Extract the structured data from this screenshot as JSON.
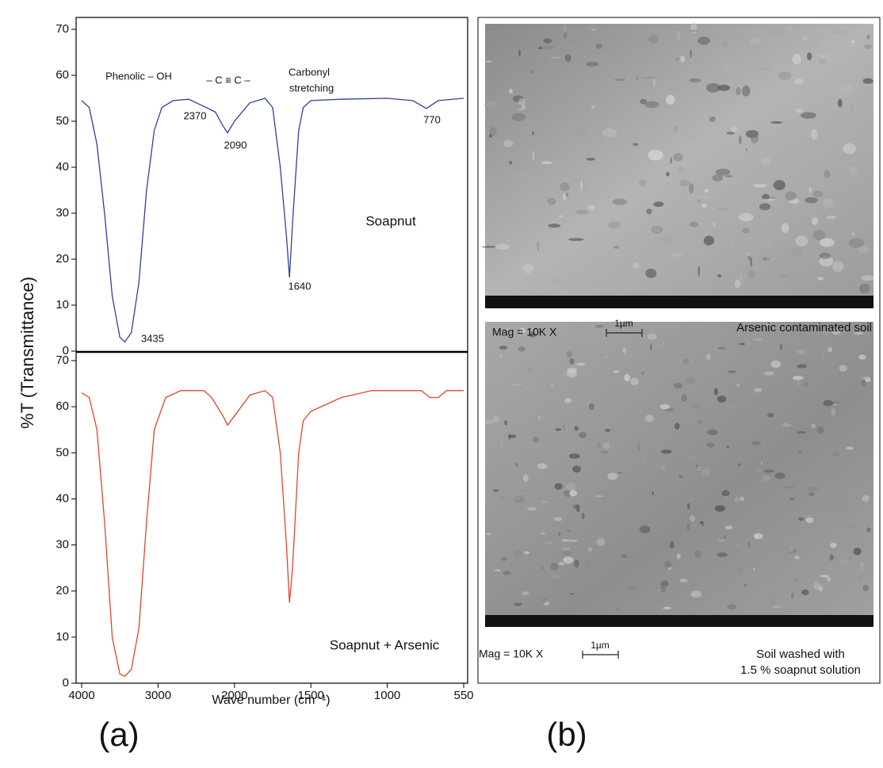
{
  "chart_data": [
    {
      "type": "line",
      "xlim": [
        4000,
        550
      ],
      "ylim": [
        0,
        70
      ],
      "yticks": [
        0,
        10,
        20,
        30,
        40,
        50,
        60,
        70
      ],
      "ylabel": "%T (Transmittance)",
      "x": [
        4000,
        3900,
        3800,
        3700,
        3600,
        3500,
        3435,
        3350,
        3250,
        3150,
        3050,
        2950,
        2800,
        2600,
        2370,
        2250,
        2150,
        2090,
        2000,
        1900,
        1800,
        1750,
        1700,
        1660,
        1640,
        1620,
        1580,
        1550,
        1500,
        1300,
        1000,
        850,
        770,
        700,
        550
      ],
      "series": [
        {
          "name": "Soapnut",
          "color": "#2f3fa0",
          "values": [
            54.5,
            53,
            45,
            30,
            12,
            3,
            2,
            4,
            15,
            35,
            48,
            53,
            54.5,
            54.8,
            53,
            52,
            49,
            47.5,
            50,
            54,
            55,
            53,
            40,
            25,
            16,
            28,
            48,
            53,
            54.5,
            54.8,
            55,
            54.5,
            52.8,
            54.5,
            55
          ]
        }
      ],
      "annotations": [
        "Phenolic – OH",
        "– C ≡ C –",
        "Carbonyl",
        "stretching",
        "2370",
        "2090",
        "1640",
        "770",
        "3435"
      ]
    },
    {
      "type": "line",
      "xlim": [
        4000,
        550
      ],
      "ylim": [
        0,
        70
      ],
      "yticks": [
        0,
        10,
        20,
        30,
        40,
        50,
        60,
        70
      ],
      "xticks": [
        4000,
        3000,
        2000,
        1500,
        1000,
        550
      ],
      "xlabel": "Wave number (cm⁻¹)",
      "x": [
        4000,
        3900,
        3800,
        3700,
        3600,
        3500,
        3435,
        3350,
        3250,
        3150,
        3050,
        2900,
        2700,
        2400,
        2300,
        2150,
        2090,
        2000,
        1900,
        1800,
        1750,
        1700,
        1660,
        1640,
        1620,
        1580,
        1550,
        1500,
        1300,
        1100,
        800,
        750,
        700,
        650,
        550
      ],
      "series": [
        {
          "name": "Soapnut + Arsenic",
          "color": "#e0442c",
          "values": [
            63,
            62,
            55,
            35,
            10,
            2,
            1.5,
            3,
            12,
            35,
            55,
            62,
            63.5,
            63.5,
            62,
            58,
            56,
            58,
            62.5,
            63.5,
            62,
            50,
            30,
            17.5,
            25,
            50,
            57,
            59,
            62,
            63.5,
            63.5,
            62,
            62,
            63.5,
            63.5
          ]
        }
      ]
    }
  ],
  "panel_labels": [
    "(a)",
    "(b)"
  ],
  "images": [
    {
      "mag": "Mag = 10K X",
      "scale": "1µm",
      "caption": [
        "Arsenic contaminated soil"
      ]
    },
    {
      "mag": "Mag = 10K X",
      "scale": "1µm",
      "caption": [
        "Soil washed with",
        "1.5 % soapnut solution"
      ]
    }
  ]
}
